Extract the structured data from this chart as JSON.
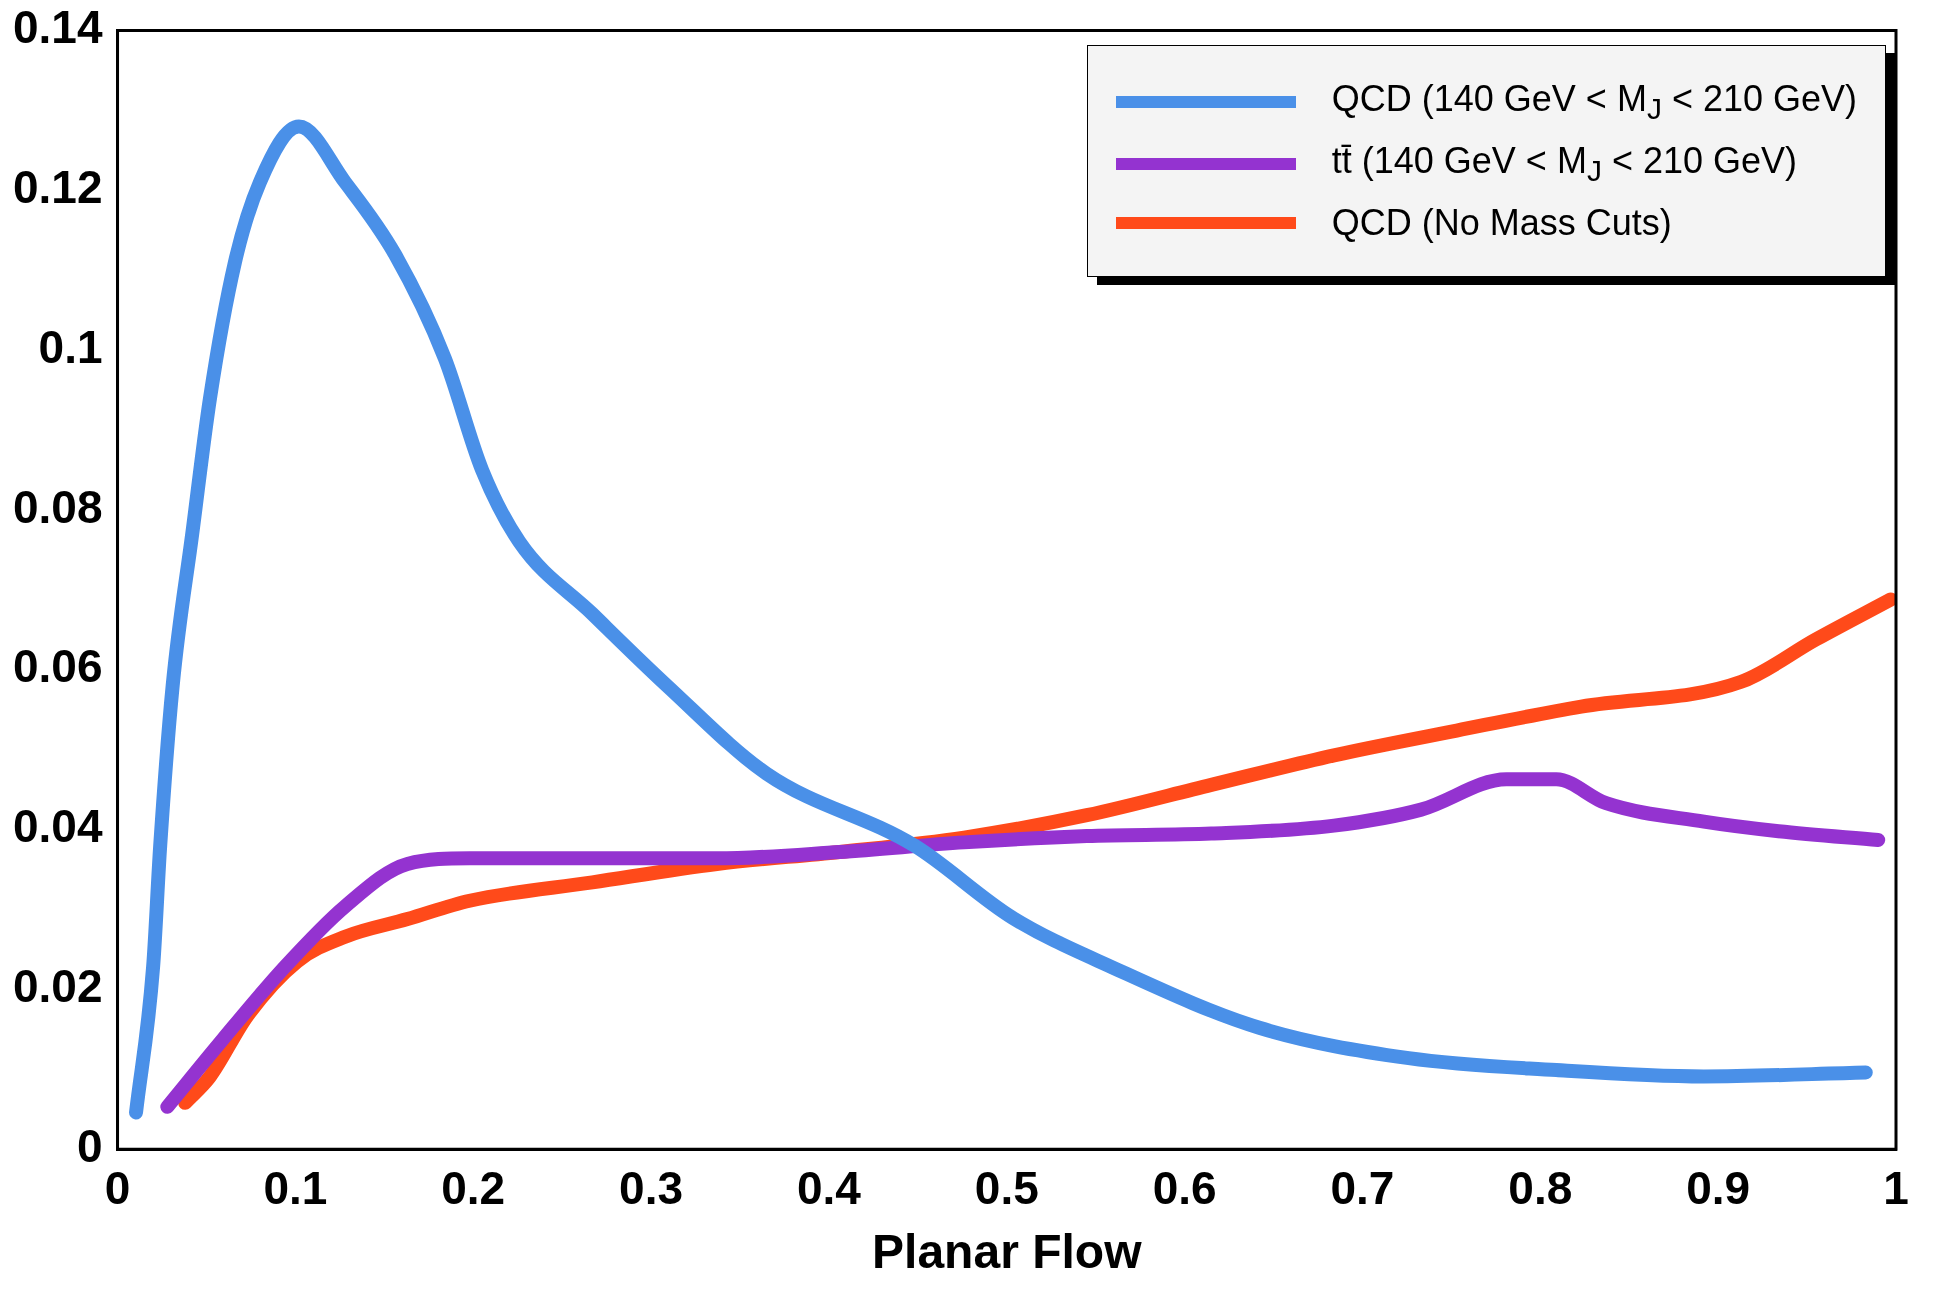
{
  "chart_data": {
    "type": "line",
    "xlabel": "Planar Flow",
    "xlim": [
      0,
      1
    ],
    "xticks": [
      0,
      0.1,
      0.2,
      0.3,
      0.4,
      0.5,
      0.6,
      0.7,
      0.8,
      0.9,
      1
    ],
    "ylim": [
      0,
      0.14
    ],
    "yticks": [
      0,
      0.02,
      0.04,
      0.06,
      0.08,
      0.1,
      0.12,
      0.14
    ],
    "grid": false,
    "legend": "top right",
    "marker": "none",
    "line_style": "solid",
    "series": [
      {
        "name": "QCD (140 GeV < M$_{J}$ < 210 GeV)",
        "color": "#4a90e8",
        "x": [
          0.0104,
          0.02,
          0.024,
          0.031,
          0.042,
          0.052,
          0.066,
          0.08,
          0.102,
          0.128,
          0.156,
          0.184,
          0.205,
          0.226,
          0.267,
          0.309,
          0.365,
          0.448,
          0.503,
          0.559,
          0.642,
          0.726,
          0.809,
          0.892,
          0.983
        ],
        "values": [
          0.0046,
          0.0228,
          0.038,
          0.058,
          0.077,
          0.094,
          0.111,
          0.121,
          0.128,
          0.121,
          0.112,
          0.099,
          0.085,
          0.076,
          0.067,
          0.058,
          0.047,
          0.038,
          0.029,
          0.0228,
          0.0152,
          0.0114,
          0.0099,
          0.0091,
          0.0096
        ]
      },
      {
        "name": "tt̄ (140 GeV < M$_{J}$ < 210 GeV)",
        "color": "#9433d0",
        "x": [
          0.028,
          0.059,
          0.094,
          0.128,
          0.163,
          0.198,
          0.267,
          0.337,
          0.406,
          0.476,
          0.545,
          0.615,
          0.684,
          0.733,
          0.781,
          0.809,
          0.837,
          0.892,
          0.934,
          0.99
        ],
        "values": [
          0.0053,
          0.0137,
          0.0228,
          0.0304,
          0.0357,
          0.0364,
          0.0364,
          0.0364,
          0.0372,
          0.0384,
          0.0392,
          0.0395,
          0.0405,
          0.0425,
          0.0463,
          0.0463,
          0.0433,
          0.041,
          0.0398,
          0.0387
        ]
      },
      {
        "name": "QCD (No Mass Cuts)",
        "color": "#ff4a1a",
        "x": [
          0.038,
          0.052,
          0.073,
          0.101,
          0.128,
          0.163,
          0.198,
          0.267,
          0.337,
          0.406,
          0.476,
          0.545,
          0.615,
          0.684,
          0.753,
          0.823,
          0.913,
          0.955,
          0.997
        ],
        "values": [
          0.0058,
          0.0091,
          0.0167,
          0.0235,
          0.0266,
          0.0288,
          0.0311,
          0.0334,
          0.0357,
          0.0372,
          0.039,
          0.0418,
          0.0456,
          0.0493,
          0.0524,
          0.0554,
          0.0585,
          0.0638,
          0.0688
        ]
      }
    ]
  }
}
